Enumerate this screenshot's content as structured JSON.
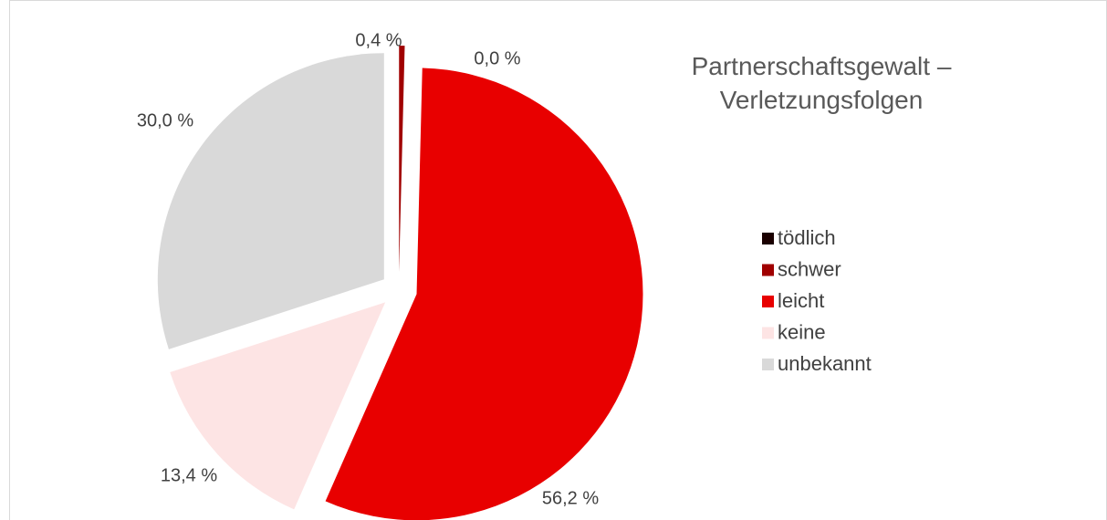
{
  "chart_data": {
    "type": "pie",
    "title": "Partnerschaftsgewalt –\nVerletzungsfolgen",
    "categories": [
      "tödlich",
      "schwer",
      "leicht",
      "keine",
      "unbekannt"
    ],
    "values": [
      0.0,
      0.4,
      56.2,
      13.4,
      30.0
    ],
    "value_labels": [
      "0,0 %",
      "0,4 %",
      "56,2 %",
      "13,4 %",
      "30,0 %"
    ],
    "colors": [
      "#1a0000",
      "#a00000",
      "#e80000",
      "#fde4e4",
      "#d9d9d9"
    ],
    "legend": "right"
  }
}
